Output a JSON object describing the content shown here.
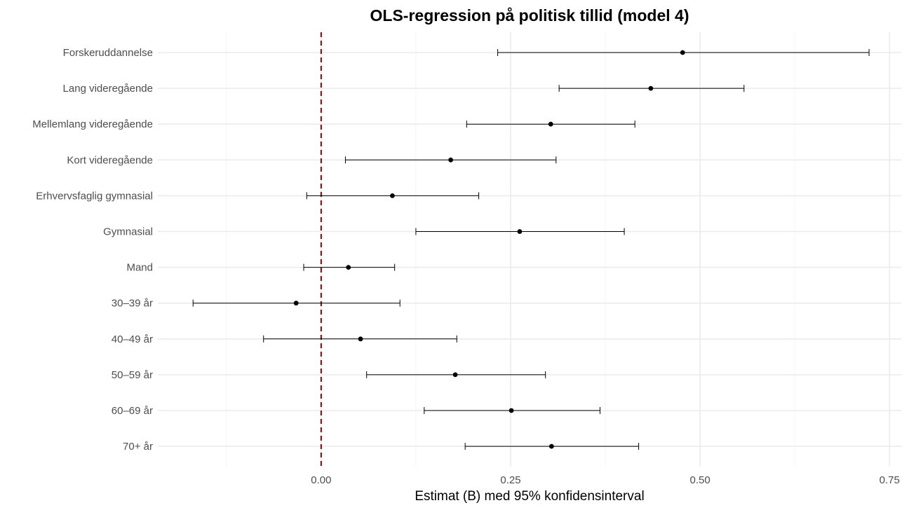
{
  "chart_data": {
    "type": "scatter",
    "title": "OLS-regression på politisk tillid (model 4)",
    "xlabel": "Estimat (B) med 95% konfidensinterval",
    "ylabel": "",
    "xlim": [
      -0.2155,
      0.7655
    ],
    "xticks": [
      0.0,
      0.25,
      0.5,
      0.75
    ],
    "xtick_labels": [
      "0.00",
      "0.25",
      "0.50",
      "0.75"
    ],
    "reference_line": {
      "x": 0,
      "color": "#8b0000",
      "style": "dashed"
    },
    "grid": true,
    "legend": "none",
    "categories": [
      "Forskeruddannelse",
      "Lang videregående",
      "Mellemlang videregående",
      "Kort videregående",
      "Erhvervsfaglig gymnasial",
      "Gymnasial",
      "Mand",
      "30–39 år",
      "40–49 år",
      "50–59 år",
      "60–69 år",
      "70+ år"
    ],
    "estimates": [
      0.477,
      0.435,
      0.303,
      0.171,
      0.094,
      0.262,
      0.036,
      -0.033,
      0.052,
      0.177,
      0.251,
      0.304
    ],
    "ci_low": [
      0.233,
      0.314,
      0.192,
      0.032,
      -0.019,
      0.125,
      -0.023,
      -0.169,
      -0.076,
      0.06,
      0.136,
      0.19
    ],
    "ci_high": [
      0.723,
      0.558,
      0.414,
      0.31,
      0.208,
      0.4,
      0.097,
      0.104,
      0.179,
      0.296,
      0.368,
      0.419
    ]
  }
}
